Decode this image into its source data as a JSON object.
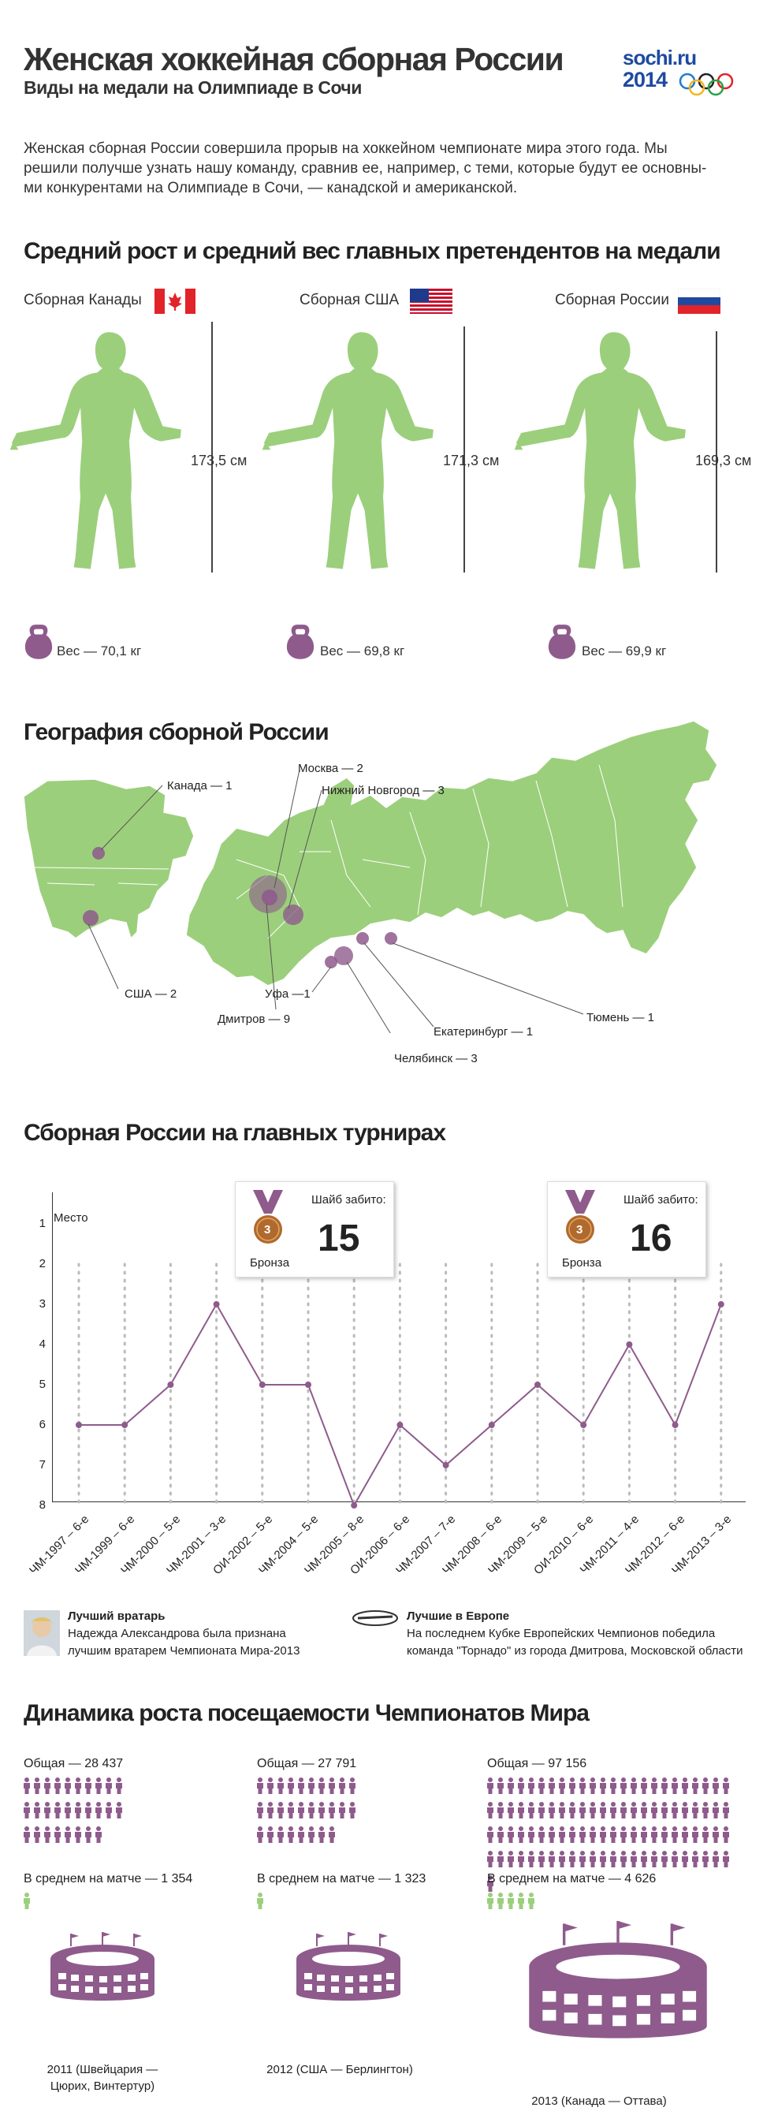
{
  "header": {
    "title": "Женская хоккейная сборная России",
    "subtitle": "Виды на медали на Олимпиаде в Сочи",
    "logo_top": "sochi.ru",
    "logo_bottom": "2014"
  },
  "intro": {
    "line1": "Женская сборная России совершила прорыв на хоккейном чемпионате мира этого года. Мы",
    "line2": "решили получше узнать нашу команду, сравнив ее, например, с теми, которые будут ее основны-",
    "line3": "ми конкурентами на Олимпиаде в Сочи, — канадской и американской."
  },
  "physique": {
    "heading": "Средний рост и средний вес главных претендентов на медали",
    "teams": [
      {
        "label": "Сборная Канады",
        "height": "173,5 см",
        "weight": "Вес — 70,1 кг"
      },
      {
        "label": "Сборная США",
        "height": "171,3 см",
        "weight": "Вес — 69,8 кг"
      },
      {
        "label": "Сборная России",
        "height": "169,3 см",
        "weight": "Вес — 69,9 кг"
      }
    ]
  },
  "geography": {
    "heading": "География сборной России",
    "labels": {
      "canada": "Канада — 1",
      "usa": "США — 2",
      "moscow": "Москва — 2",
      "nn": "Нижний Новгород — 3",
      "ufa": "Уфа —1",
      "dmitrov": "Дмитров — 9",
      "ekb": "Екатеринбург — 1",
      "chel": "Челябинск — 3",
      "tyumen": "Тюмень — 1"
    }
  },
  "tournaments": {
    "heading": "Сборная России на главных турнирах",
    "y_title": "Место",
    "y_ticks": [
      "1",
      "2",
      "3",
      "4",
      "5",
      "6",
      "7",
      "8"
    ],
    "medal_label": "Бронза",
    "goals_label": "Шайб забито:",
    "medal_number": "3",
    "callout1_goals": "15",
    "callout2_goals": "16"
  },
  "chart_data": {
    "type": "line",
    "x": [
      "ЧМ-1997 – 6-е",
      "ЧМ-1999 – 6-е",
      "ЧМ-2000 – 5-е",
      "ЧМ-2001 – 3-е",
      "ОИ-2002 – 5-е",
      "ЧМ-2004 – 5-е",
      "ЧМ-2005 – 8-е",
      "ОИ-2006 – 6-е",
      "ЧМ-2007 – 7-е",
      "ЧМ-2008 – 6-е",
      "ЧМ-2009 – 5-е",
      "ОИ-2010 – 6-е",
      "ЧМ-2011 – 4-е",
      "ЧМ-2012 – 6-е",
      "ЧМ-2013 – 3-е"
    ],
    "values": [
      6,
      6,
      5,
      3,
      5,
      5,
      8,
      6,
      7,
      6,
      5,
      6,
      4,
      6,
      3
    ],
    "ylabel": "Место",
    "ylim": [
      1,
      8
    ],
    "y_inverted": true,
    "grid": "dotted vertical",
    "color": "#8e5b8c"
  },
  "awards": {
    "goalie_title": "Лучший вратарь",
    "goalie_text1": "Надежда Александрова была признана",
    "goalie_text2": "лучшим вратарем Чемпионата Мира-2013",
    "europe_title": "Лучшие в Европе",
    "europe_text1": "На последнем Кубке Европейских Чемпионов победила",
    "europe_text2": "команда \"Торнадо\" из города Дмитрова, Московской области"
  },
  "attendance": {
    "heading": "Динамика роста посещаемости Чемпионатов Мира",
    "columns": [
      {
        "total": "Общая — 28 437",
        "avg": "В среднем на матче — 1 354",
        "venue1": "2011 (Швейцария —",
        "venue2": "Цюрих, Винтертур)",
        "people": 28,
        "avg_icons": 1
      },
      {
        "total": "Общая — 27 791",
        "avg": "В среднем на матче — 1 323",
        "venue1": "2012 (США — Берлингтон)",
        "venue2": "",
        "people": 28,
        "avg_icons": 1
      },
      {
        "total": "Общая — 97 156",
        "avg": "В среднем на матче — 4 626",
        "venue1": "2013 (Канада — Оттава)",
        "venue2": "",
        "people": 97,
        "avg_icons": 5
      }
    ]
  },
  "colors": {
    "green": "#9ccf7c",
    "purple": "#8e5b8c",
    "bronze": "#b06a2d",
    "red": "#e1232a",
    "blue": "#1f4aa0"
  }
}
